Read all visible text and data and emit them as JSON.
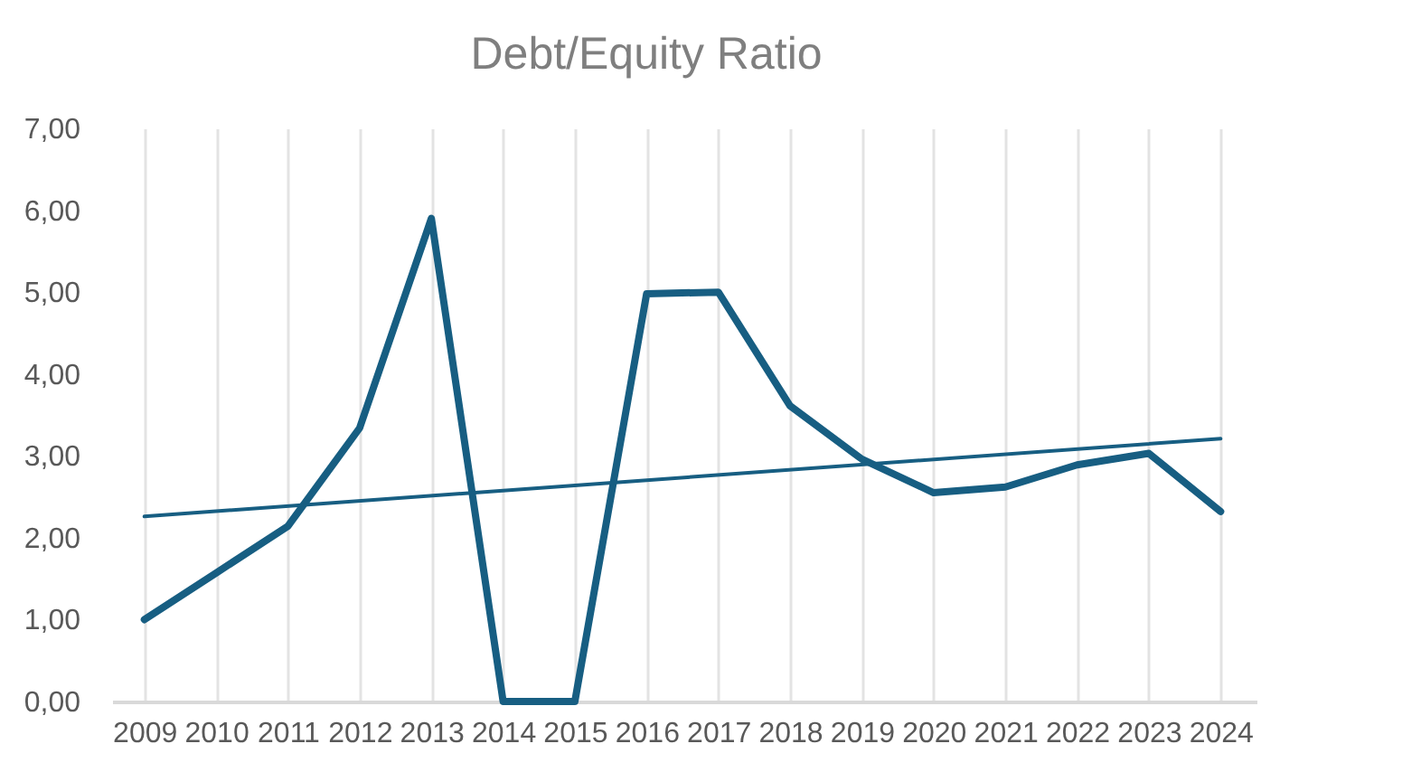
{
  "chart_data": {
    "type": "line",
    "title": "Debt/Equity Ratio",
    "x": [
      2009,
      2010,
      2011,
      2012,
      2013,
      2014,
      2015,
      2016,
      2017,
      2018,
      2019,
      2020,
      2021,
      2022,
      2023,
      2024
    ],
    "xlim": [
      2008.55,
      2024.5
    ],
    "xticks": [
      2009,
      2010,
      2011,
      2012,
      2013,
      2014,
      2015,
      2016,
      2017,
      2018,
      2019,
      2020,
      2021,
      2022,
      2023,
      2024
    ],
    "ylim": [
      0,
      7
    ],
    "yticks": [
      {
        "value": 0,
        "label": "0,00"
      },
      {
        "value": 1,
        "label": "1,00"
      },
      {
        "value": 2,
        "label": "2,00"
      },
      {
        "value": 3,
        "label": "3,00"
      },
      {
        "value": 4,
        "label": "4,00"
      },
      {
        "value": 5,
        "label": "5,00"
      },
      {
        "value": 6,
        "label": "6,00"
      },
      {
        "value": 7,
        "label": "7,00"
      }
    ],
    "grid": "x",
    "series": [
      {
        "color": "#175e82",
        "values": [
          1.0,
          1.57,
          2.14,
          3.34,
          5.9,
          0.0,
          0.0,
          4.98,
          5.0,
          3.61,
          2.96,
          2.55,
          2.62,
          2.89,
          3.03,
          2.32
        ]
      },
      {
        "type": "line",
        "color": "#175e82",
        "x": [
          2009,
          2024
        ],
        "values": [
          2.26,
          3.21
        ]
      }
    ]
  }
}
